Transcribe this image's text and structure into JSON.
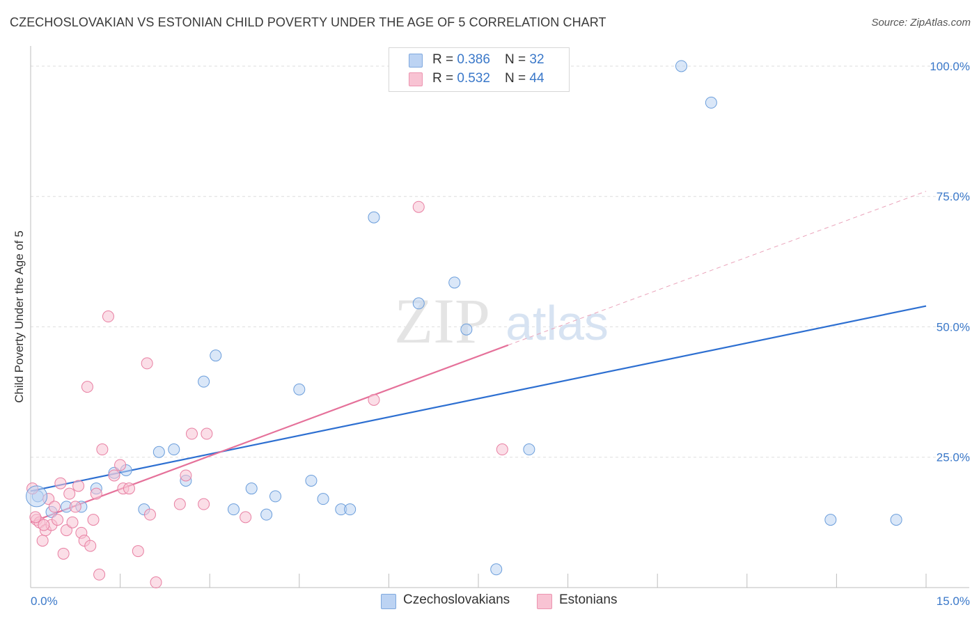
{
  "title": "CZECHOSLOVAKIAN VS ESTONIAN CHILD POVERTY UNDER THE AGE OF 5 CORRELATION CHART",
  "source": "Source: ZipAtlas.com",
  "watermark": {
    "zip": "ZIP",
    "atlas": "atlas"
  },
  "legend_top": [
    {
      "r_label": "R = ",
      "r_value": "0.386",
      "n_label": "N = ",
      "n_value": "32",
      "color": "#a9c8f0"
    },
    {
      "r_label": "R = ",
      "r_value": "0.532",
      "n_label": "N = ",
      "n_value": "44",
      "color": "#f7b6c8"
    }
  ],
  "chart_data": {
    "type": "scatter",
    "title": "CZECHOSLOVAKIAN VS ESTONIAN CHILD POVERTY UNDER THE AGE OF 5 CORRELATION CHART",
    "xlabel": "",
    "ylabel": "Child Poverty Under the Age of 5",
    "xlim": [
      0,
      15
    ],
    "ylim": [
      0,
      102
    ],
    "x_tick_labels": [
      {
        "value": 0,
        "label": "0.0%"
      },
      {
        "value": 15,
        "label": "15.0%"
      }
    ],
    "y_tick_labels": [
      {
        "value": 25,
        "label": "25.0%"
      },
      {
        "value": 50,
        "label": "50.0%"
      },
      {
        "value": 75,
        "label": "75.0%"
      },
      {
        "value": 100,
        "label": "100.0%"
      }
    ],
    "grid": true,
    "legend": "bottom-center",
    "series": [
      {
        "name": "Czechoslovakians",
        "color": "#6a9ddb",
        "fill": "#bcd3f3",
        "points": [
          [
            0.12,
            17.5
          ],
          [
            0.35,
            14.5
          ],
          [
            0.6,
            15.5
          ],
          [
            0.85,
            15.5
          ],
          [
            1.1,
            19.0
          ],
          [
            1.4,
            22.0
          ],
          [
            1.6,
            22.5
          ],
          [
            1.9,
            15.0
          ],
          [
            2.15,
            26.0
          ],
          [
            2.4,
            26.5
          ],
          [
            2.6,
            20.5
          ],
          [
            2.9,
            39.5
          ],
          [
            3.1,
            44.5
          ],
          [
            3.4,
            15.0
          ],
          [
            3.7,
            19.0
          ],
          [
            3.95,
            14.0
          ],
          [
            4.1,
            17.5
          ],
          [
            4.5,
            38.0
          ],
          [
            4.7,
            20.5
          ],
          [
            4.9,
            17.0
          ],
          [
            5.2,
            15.0
          ],
          [
            5.35,
            15.0
          ],
          [
            5.75,
            71.0
          ],
          [
            6.5,
            54.5
          ],
          [
            7.1,
            58.5
          ],
          [
            7.3,
            49.5
          ],
          [
            7.8,
            3.5
          ],
          [
            8.35,
            26.5
          ],
          [
            10.9,
            100.0
          ],
          [
            11.4,
            93.0
          ],
          [
            13.4,
            13.0
          ],
          [
            14.5,
            13.0
          ]
        ],
        "trend": {
          "x": [
            0,
            15
          ],
          "y": [
            18.5,
            54.0
          ]
        }
      },
      {
        "name": "Estonians",
        "color": "#e87fa2",
        "fill": "#f8c3d3",
        "points": [
          [
            0.03,
            19.0
          ],
          [
            0.1,
            13.0
          ],
          [
            0.15,
            12.5
          ],
          [
            0.2,
            9.0
          ],
          [
            0.25,
            11.0
          ],
          [
            0.3,
            17.0
          ],
          [
            0.35,
            12.0
          ],
          [
            0.4,
            15.5
          ],
          [
            0.45,
            13.0
          ],
          [
            0.5,
            20.0
          ],
          [
            0.55,
            6.5
          ],
          [
            0.6,
            11.0
          ],
          [
            0.65,
            18.0
          ],
          [
            0.7,
            12.5
          ],
          [
            0.75,
            15.5
          ],
          [
            0.8,
            19.5
          ],
          [
            0.85,
            10.5
          ],
          [
            0.9,
            9.0
          ],
          [
            0.95,
            38.5
          ],
          [
            1.0,
            8.0
          ],
          [
            1.05,
            13.0
          ],
          [
            1.1,
            18.0
          ],
          [
            1.15,
            2.5
          ],
          [
            1.2,
            26.5
          ],
          [
            1.3,
            52.0
          ],
          [
            1.4,
            21.5
          ],
          [
            1.5,
            23.5
          ],
          [
            1.55,
            19.0
          ],
          [
            1.65,
            19.0
          ],
          [
            1.8,
            7.0
          ],
          [
            1.95,
            43.0
          ],
          [
            2.0,
            14.0
          ],
          [
            2.1,
            1.0
          ],
          [
            2.5,
            16.0
          ],
          [
            2.6,
            21.5
          ],
          [
            2.7,
            29.5
          ],
          [
            2.9,
            16.0
          ],
          [
            2.95,
            29.5
          ],
          [
            3.6,
            13.5
          ],
          [
            5.75,
            36.0
          ],
          [
            6.5,
            73.0
          ],
          [
            7.9,
            26.5
          ],
          [
            0.08,
            13.5
          ],
          [
            0.22,
            12.0
          ]
        ],
        "trend": {
          "x": [
            0,
            8.0
          ],
          "y": [
            12.5,
            46.5
          ]
        },
        "trend_extension": {
          "x": [
            8.0,
            15.0
          ],
          "y": [
            46.5,
            76.0
          ]
        }
      }
    ]
  },
  "bottom_legend": [
    {
      "label": "Czechoslovakians",
      "color": "#a9c8f0"
    },
    {
      "label": "Estonians",
      "color": "#f7b6c8"
    }
  ]
}
